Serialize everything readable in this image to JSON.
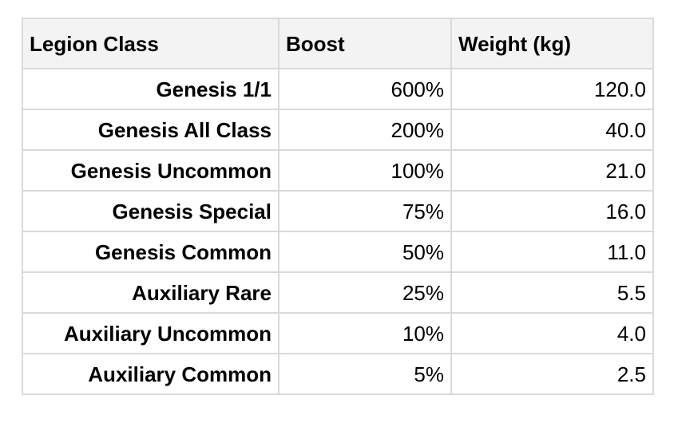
{
  "table": {
    "headers": [
      "Legion Class",
      "Boost",
      "Weight (kg)"
    ],
    "rows": [
      [
        "Genesis 1/1",
        "600%",
        "120.0"
      ],
      [
        "Genesis All Class",
        "200%",
        "40.0"
      ],
      [
        "Genesis Uncommon",
        "100%",
        "21.0"
      ],
      [
        "Genesis Special",
        "75%",
        "16.0"
      ],
      [
        "Genesis Common",
        "50%",
        "11.0"
      ],
      [
        "Auxiliary Rare",
        "25%",
        "5.5"
      ],
      [
        "Auxiliary Uncommon",
        "10%",
        "4.0"
      ],
      [
        "Auxiliary Common",
        "5%",
        "2.5"
      ]
    ]
  },
  "colors": {
    "border": "#d9d9d9",
    "header_background": "#f3f3f3",
    "text": "#000000"
  }
}
